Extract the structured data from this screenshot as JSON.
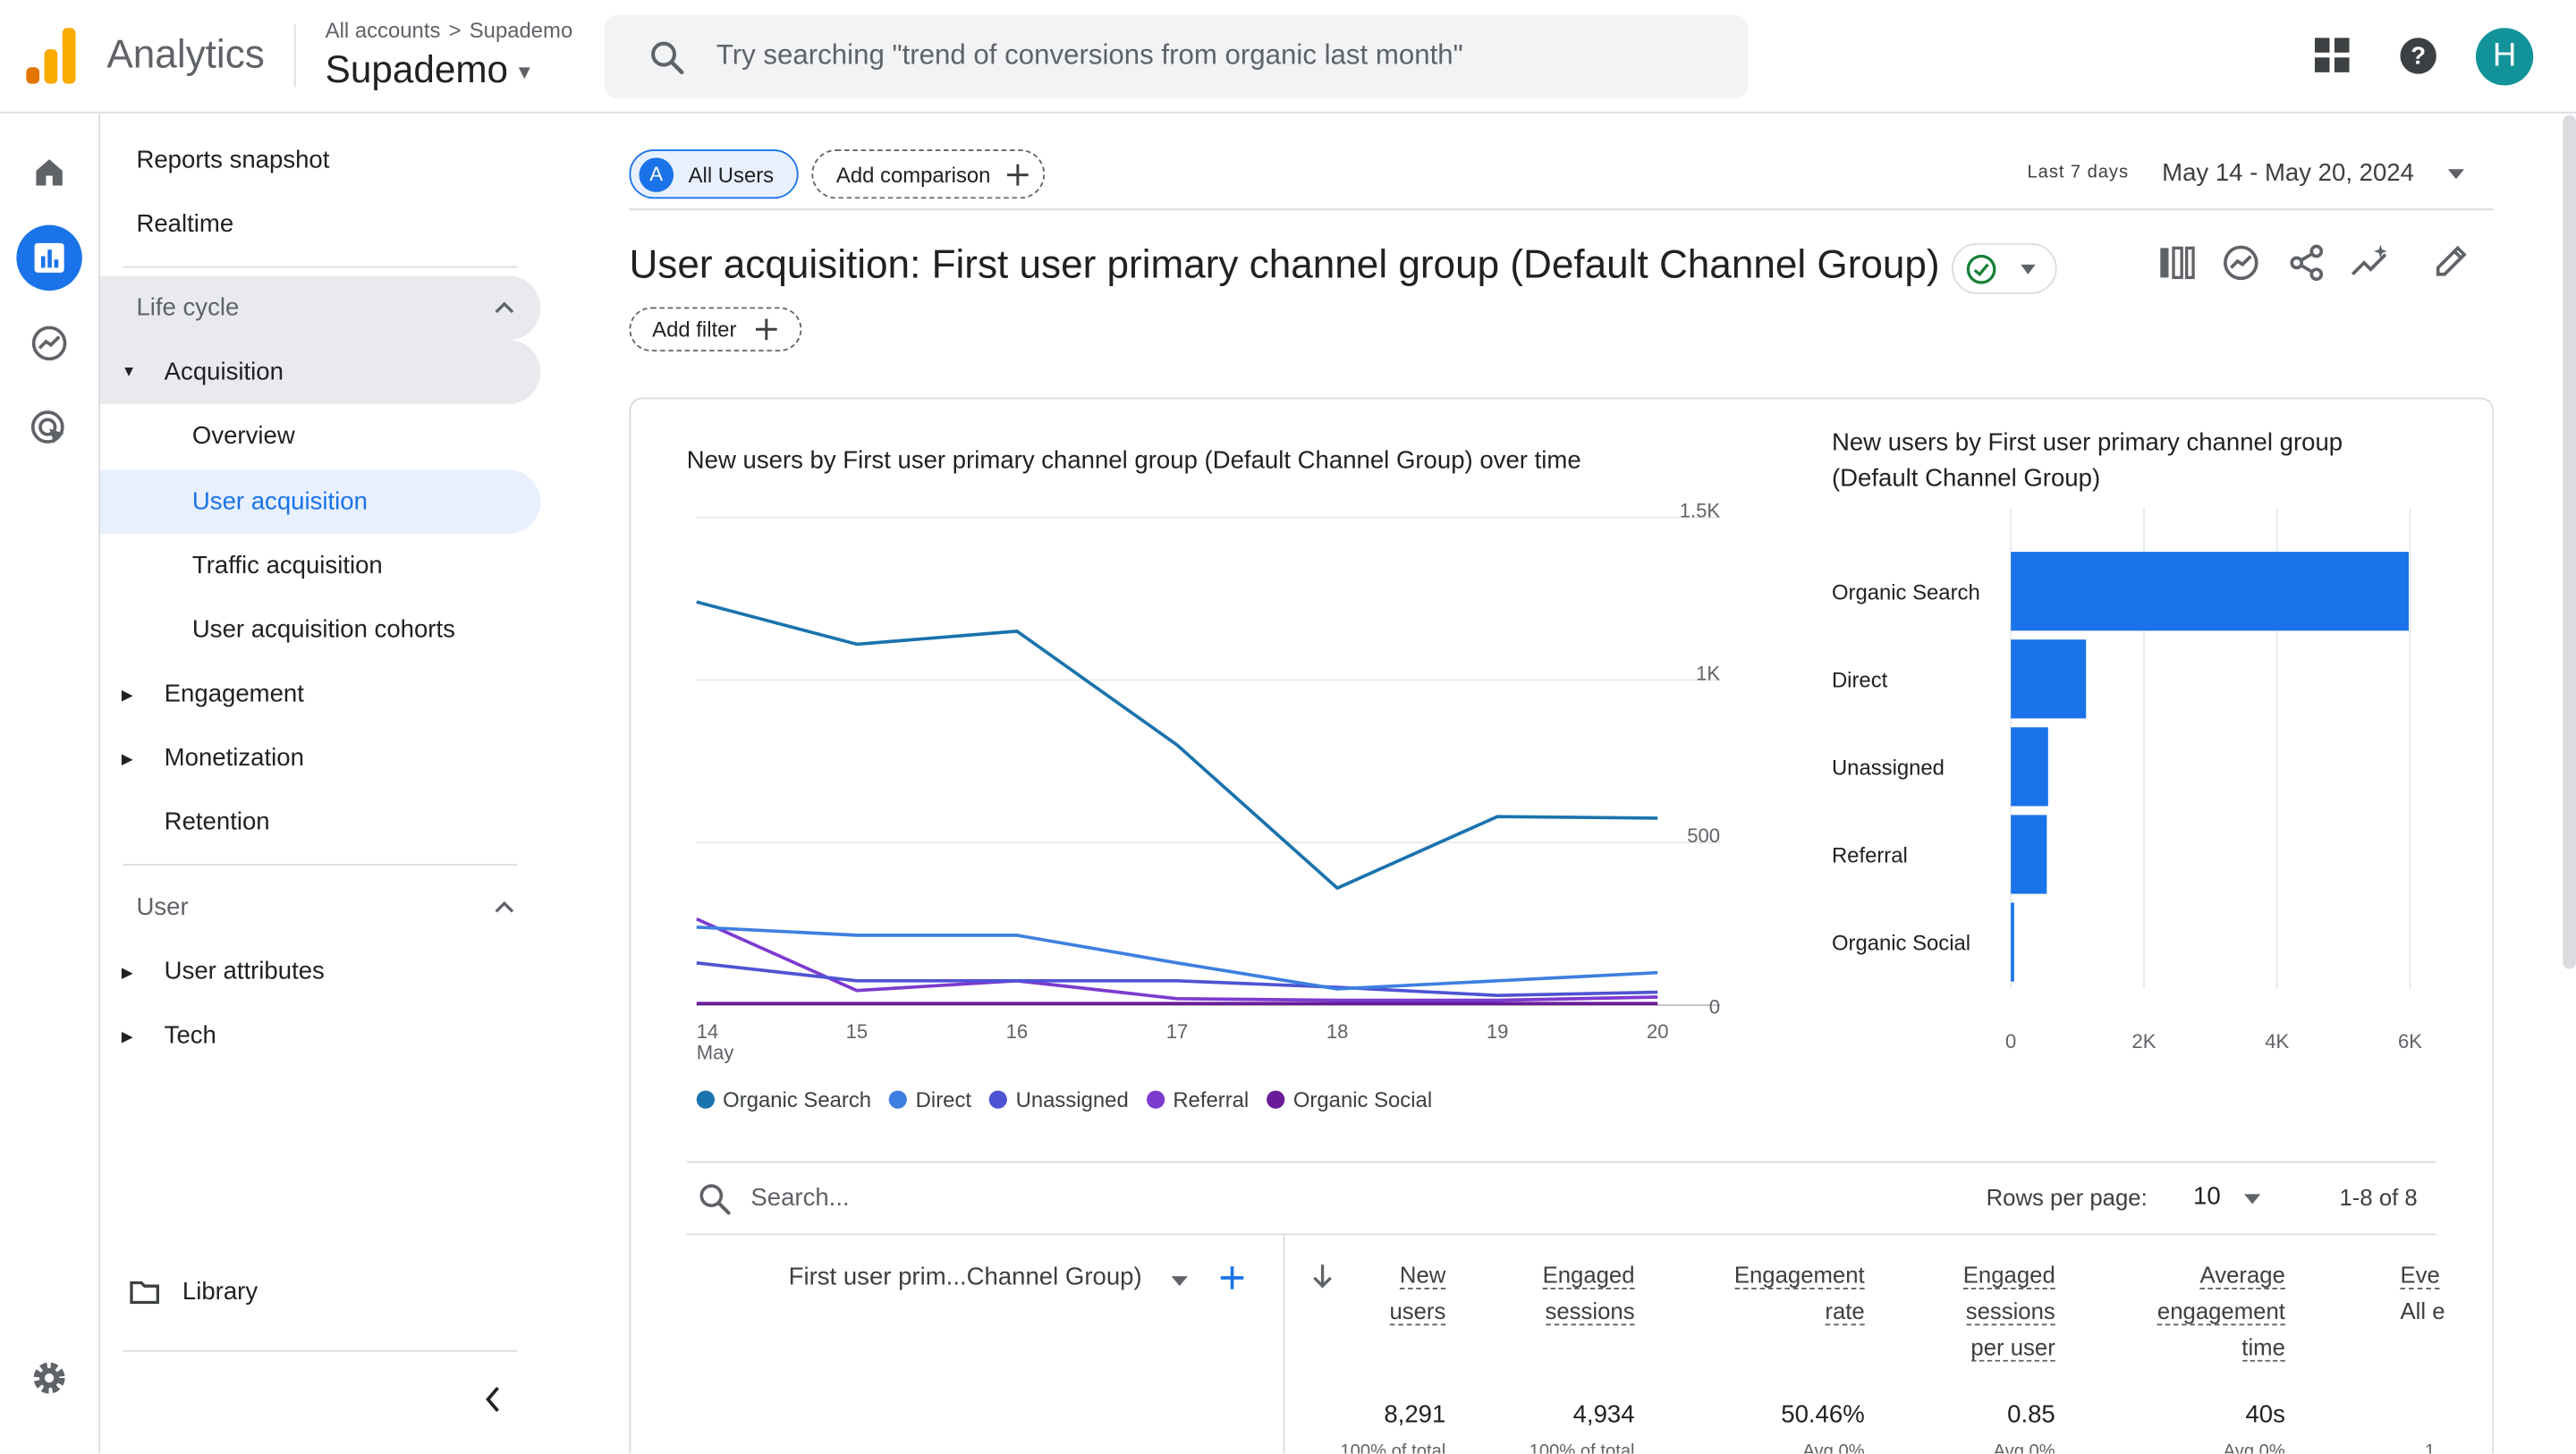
{
  "header": {
    "app_name": "Analytics",
    "breadcrumb_root": "All accounts",
    "breadcrumb_sep": ">",
    "breadcrumb_account": "Supademo",
    "account_name": "Supademo",
    "search_placeholder": "Try searching \"trend of conversions from organic last month\"",
    "avatar_letter": "H",
    "colors": {
      "logo_orange": "#F9AB00",
      "logo_dark": "#E37400",
      "avatar": "#12939A",
      "accent": "#1A73E8"
    }
  },
  "nav": {
    "reports_snapshot": "Reports snapshot",
    "realtime": "Realtime",
    "lifecycle": "Life cycle",
    "acquisition": "Acquisition",
    "overview": "Overview",
    "user_acquisition": "User acquisition",
    "traffic_acquisition": "Traffic acquisition",
    "user_acquisition_cohorts": "User acquisition cohorts",
    "engagement": "Engagement",
    "monetization": "Monetization",
    "retention": "Retention",
    "user": "User",
    "user_attributes": "User attributes",
    "tech": "Tech",
    "library": "Library"
  },
  "toolbar": {
    "segment_letter": "A",
    "segment_label": "All Users",
    "add_comparison": "Add comparison",
    "date_preset": "Last 7 days",
    "date_range": "May 14 - May 20, 2024",
    "page_title": "User acquisition: First user primary channel group (Default Channel Group)",
    "add_filter": "Add filter"
  },
  "chart_data": [
    {
      "type": "line",
      "title": "New users by First user primary channel group (Default Channel Group) over time",
      "x": [
        "14",
        "15",
        "16",
        "17",
        "18",
        "19",
        "20"
      ],
      "x_sublabel": "May",
      "y_ticks": [
        "0",
        "500",
        "1K",
        "1.5K"
      ],
      "ylim": [
        0,
        1500
      ],
      "series": [
        {
          "name": "Organic Search",
          "color": "#1A73AD",
          "values": [
            1240,
            1110,
            1150,
            800,
            360,
            580,
            575
          ]
        },
        {
          "name": "Direct",
          "color": "#3D7FE0",
          "values": [
            240,
            215,
            215,
            130,
            50,
            75,
            100
          ]
        },
        {
          "name": "Unassigned",
          "color": "#4E53D3",
          "values": [
            130,
            75,
            75,
            75,
            55,
            30,
            40
          ]
        },
        {
          "name": "Referral",
          "color": "#7D3ACF",
          "values": [
            265,
            45,
            75,
            20,
            15,
            15,
            25
          ]
        },
        {
          "name": "Organic Social",
          "color": "#6A1B9A",
          "values": [
            5,
            5,
            5,
            5,
            5,
            5,
            5
          ]
        }
      ]
    },
    {
      "type": "bar",
      "title_line1": "New users by First user primary channel group",
      "title_line2": "(Default Channel Group)",
      "categories": [
        "Organic Search",
        "Direct",
        "Unassigned",
        "Referral",
        "Organic Social"
      ],
      "values": [
        5980,
        1130,
        560,
        540,
        30
      ],
      "x_ticks": [
        "0",
        "2K",
        "4K",
        "6K"
      ],
      "xlim": [
        0,
        6000
      ],
      "color": "#1A73E8"
    }
  ],
  "table": {
    "search_placeholder": "Search...",
    "rows_per_page_label": "Rows per page:",
    "rows_per_page": "10",
    "pagination": "1-8 of 8",
    "dimension_header": "First user prim...Channel Group)",
    "columns": [
      {
        "line1": "New",
        "line2": "users",
        "line3": ""
      },
      {
        "line1": "Engaged",
        "line2": "sessions",
        "line3": ""
      },
      {
        "line1": "Engagement",
        "line2": "rate",
        "line3": ""
      },
      {
        "line1": "Engaged",
        "line2": "sessions",
        "line3": "per user"
      },
      {
        "line1": "Average",
        "line2": "engagement",
        "line3": "time"
      },
      {
        "line1": "Eve",
        "line2": "All e",
        "line3": ""
      }
    ],
    "totals": [
      "8,291",
      "4,934",
      "50.46%",
      "0.85",
      "40s"
    ],
    "totals_sub": [
      "100% of total",
      "100% of total",
      "Avg 0%",
      "Avg 0%",
      "Avg 0%",
      "1"
    ]
  }
}
